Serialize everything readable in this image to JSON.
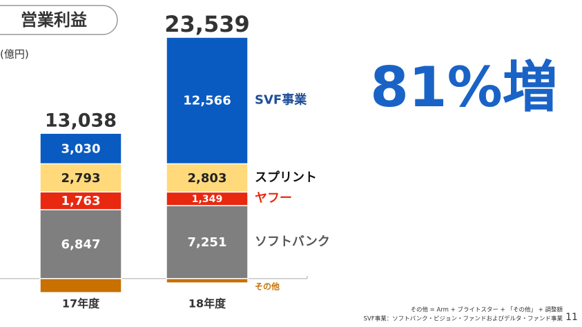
{
  "chart_data": {
    "type": "stacked_bar",
    "title": "営業利益",
    "unit_label": "(億円)",
    "annotation": "81%増",
    "footnotes": [
      "その他 = Arm + ブライトスター + 「その他」 + 調整額",
      "SVF事業：ソフトバンク・ビジョン・ファンドおよびデルタ・ファンド事業"
    ],
    "page_number": "11",
    "categories": [
      "17年度",
      "18年度"
    ],
    "series": [
      {
        "name": "ソフトバンク",
        "color": "#7f7f7f",
        "legend_color": "#555555",
        "values": [
          6847,
          7251
        ],
        "value_labels": [
          "6,847",
          "7,251"
        ]
      },
      {
        "name": "ヤフー",
        "color": "#e8280f",
        "legend_color": "#e8280f",
        "values": [
          1763,
          1349
        ],
        "value_labels": [
          "1,763",
          "1,349"
        ]
      },
      {
        "name": "スプリント",
        "color": "#ffd97a",
        "legend_color": "#111111",
        "values": [
          2793,
          2803
        ],
        "value_labels": [
          "2,793",
          "2,803"
        ]
      },
      {
        "name": "SVF事業",
        "color": "#0a5bc1",
        "legend_color": "#1f4e9a",
        "values": [
          3030,
          12566
        ],
        "value_labels": [
          "3,030",
          "12,566"
        ]
      },
      {
        "name": "その他",
        "color": "#c87000",
        "legend_color": "#c87000",
        "values": [
          -1395,
          -430
        ]
      }
    ],
    "totals": {
      "values": [
        13038,
        23539
      ],
      "value_labels": [
        "13,038",
        "23,539"
      ]
    },
    "ylim": [
      -2000,
      25000
    ]
  }
}
